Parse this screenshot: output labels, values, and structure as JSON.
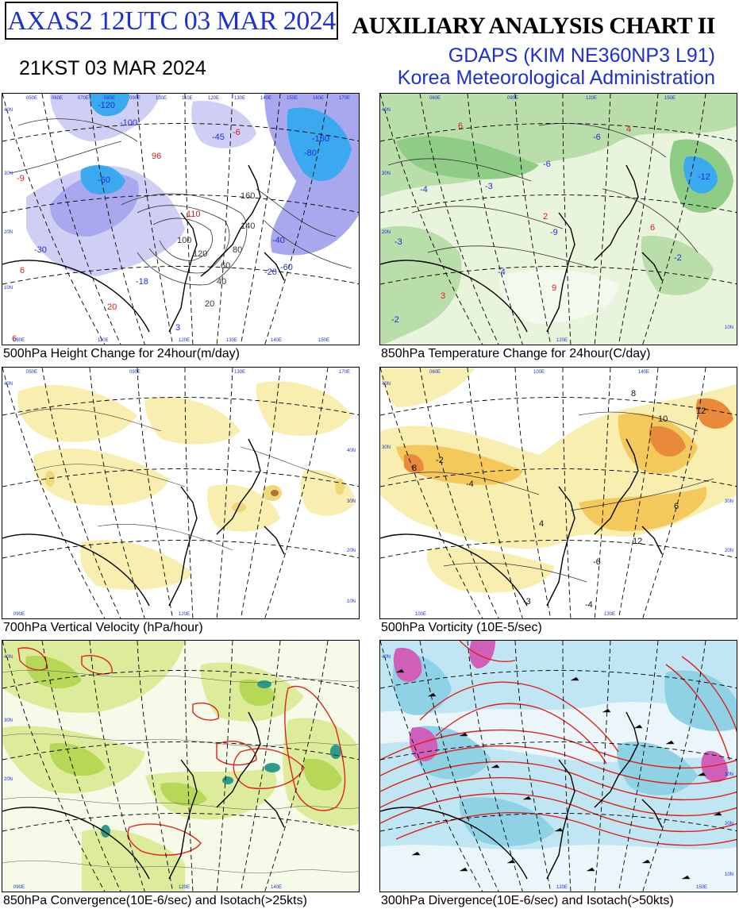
{
  "header": {
    "id_box": "AXAS2  12UTC 03 MAR 2024",
    "local_time": "21KST 03 MAR 2024",
    "title": "AUXILIARY ANALYSIS CHART II",
    "model": "GDAPS (KIM NE360NP3 L91)",
    "agency": "Korea Meteorological Administration"
  },
  "panels": [
    {
      "caption": "500hPa Height Change for 24hour(m/day)",
      "labels": [
        "-45",
        "-60",
        "-18",
        "-20",
        "-40",
        "-60",
        "-80",
        "-100",
        "-120",
        "-160",
        "-30",
        "20",
        "40",
        "60",
        "80",
        "100",
        "120",
        "140",
        "160",
        "96",
        "110",
        "20",
        "6",
        "3",
        "6",
        "-9",
        "-6"
      ]
    },
    {
      "caption": "850hPa Temperature Change for 24hour(C/day)",
      "labels": [
        "-6",
        "-3",
        "-9",
        "-12",
        "-2",
        "-4",
        "-6",
        "-3",
        "3",
        "6",
        "9",
        "4",
        "2",
        "6",
        "-2",
        "-4"
      ]
    },
    {
      "caption": "700hPa Vertical Velocity (hPa/hour)"
    },
    {
      "caption": "500hPa Vorticity (10E-5/sec)",
      "labels": [
        "-4",
        "-6",
        "-3",
        "-2",
        "-4",
        "8",
        "10",
        "12",
        "6",
        "4",
        "8",
        "12"
      ]
    },
    {
      "caption": "850hPa Convergence(10E-6/sec) and Isotach(>25kts)"
    },
    {
      "caption": "300hPa Divergence(10E-6/sec) and Isotach(>50kts)"
    }
  ],
  "map_grid": {
    "longitudes": [
      "050E",
      "060E",
      "070E",
      "080E",
      "090E",
      "100E",
      "110E",
      "120E",
      "130E",
      "140E",
      "150E",
      "160E",
      "170E"
    ],
    "latitudes": [
      "10N",
      "20N",
      "30N",
      "40N"
    ],
    "bottom_longitudes": [
      "090E",
      "100E",
      "110E",
      "120E",
      "130E",
      "140E",
      "150E"
    ]
  },
  "colors": {
    "blue_title": "#1f2fd0",
    "height_fall_shading": "#a9a8ee",
    "strong_fall_shading": "#3aa9f0",
    "temp_fall_shading": "#6fc36a",
    "vertical_velocity_shading": "#f7eeb0",
    "vorticity_shading": "#f4c85a",
    "convergence_shading": "#c8e26a",
    "divergence_shading": "#9ad8ea",
    "isotach_line": "#e0201c"
  }
}
